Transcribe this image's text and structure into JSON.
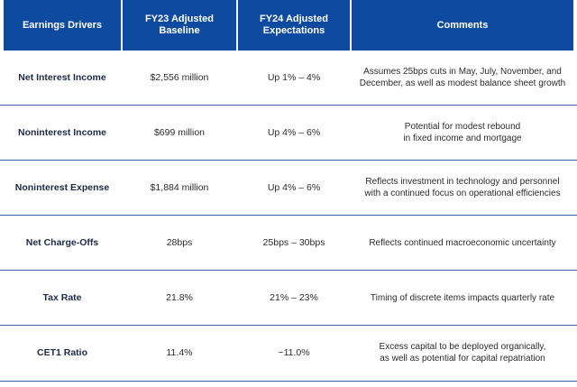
{
  "header": {
    "col1": "Earnings Drivers",
    "col2_line1": "FY23 Adjusted",
    "col2_line2": "Baseline",
    "col3_line1": "FY24 Adjusted",
    "col3_line2": "Expectations",
    "col4": "Comments"
  },
  "rows": [
    {
      "driver": "Net Interest Income",
      "baseline": "$2,556 million",
      "expectation": "Up 1% – 4%",
      "comment_line1": "Assumes 25bps cuts in May, July, November, and",
      "comment_line2": "December, as well as modest balance sheet growth"
    },
    {
      "driver": "Noninterest Income",
      "baseline": "$699 million",
      "expectation": "Up 4% – 6%",
      "comment_line1": "Potential for modest rebound",
      "comment_line2": "in fixed income and mortgage"
    },
    {
      "driver": "Noninterest Expense",
      "baseline": "$1,884 million",
      "expectation": "Up 4% – 6%",
      "comment_line1": "Reflects investment in technology and personnel",
      "comment_line2": "with a continued focus on operational efficiencies"
    },
    {
      "driver": "Net Charge-Offs",
      "baseline": "28bps",
      "expectation": "25bps – 30bps",
      "comment_line1": "Reflects continued macroeconomic uncertainty",
      "comment_line2": ""
    },
    {
      "driver": "Tax Rate",
      "baseline": "21.8%",
      "expectation": "21% – 23%",
      "comment_line1": "Timing of discrete items impacts quarterly rate",
      "comment_line2": ""
    },
    {
      "driver": "CET1 Ratio",
      "baseline": "11.4%",
      "expectation": "~11.0%",
      "comment_line1": "Excess capital to be deployed organically,",
      "comment_line2": "as well as potential for capital repatriation"
    }
  ],
  "colors": {
    "header_bg": "#0f4aa1",
    "header_text": "#ffffff",
    "row_divider": "#3f5fa8"
  }
}
